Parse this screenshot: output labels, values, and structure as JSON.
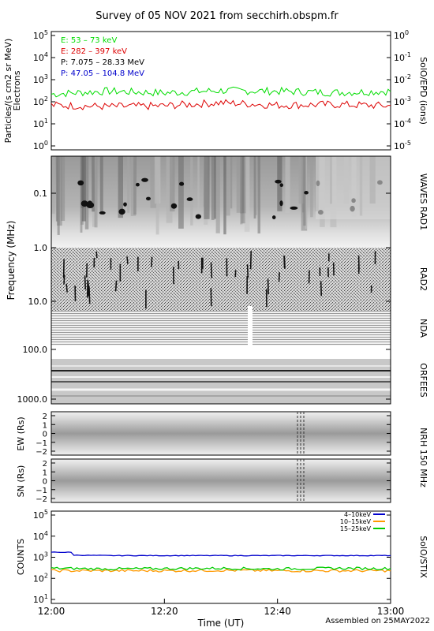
{
  "title": "Survey of 05 NOV 2021 from secchirh.obspm.fr",
  "footer": "Assembled on 25MAY2022",
  "x_axis": {
    "label": "Time (UT)",
    "ticks": [
      "12:00",
      "12:20",
      "12:40",
      "13:00"
    ]
  },
  "panels": {
    "epd": {
      "left_label_1": "Particles/(s cm2 sr MeV)",
      "left_label_2": "Electrons",
      "right_label": "SolO/EPD (ions)",
      "left_ticks": [
        "10^5",
        "10^4",
        "10^3",
        "10^2",
        "10^1",
        "10^0"
      ],
      "right_ticks": [
        "10^0",
        "10^-1",
        "10^-2",
        "10^-3",
        "10^-4",
        "10^-5"
      ],
      "legend": [
        {
          "text": "E: 53 – 73 keV",
          "color": "#00dd00"
        },
        {
          "text": "E: 282 – 397 keV",
          "color": "#dd0000"
        },
        {
          "text": "P: 7.075 – 28.33 MeV",
          "color": "#000000"
        },
        {
          "text": "P: 47.05 – 104.8 MeV",
          "color": "#0000cc"
        }
      ]
    },
    "spectrum": {
      "ylabel": "Frequency (MHz)",
      "yticks": [
        "0.1",
        "1.0",
        "10.0",
        "100.0",
        "1000.0"
      ],
      "instruments": [
        "WAVES RAD1",
        "RAD2",
        "NDA",
        "ORFEES"
      ]
    },
    "nrh": {
      "title": "NRH 150 MHz",
      "ew_label": "EW (Rs)",
      "sn_label": "SN (Rs)",
      "ticks": [
        "2",
        "1",
        "0",
        "−1",
        "−2"
      ]
    },
    "stix": {
      "ylabel": "COUNTS",
      "right_label": "SolO/STIX",
      "yticks": [
        "10^5",
        "10^4",
        "10^3",
        "10^2",
        "10^1"
      ],
      "legend": [
        {
          "text": "4–10keV",
          "color": "#0000cc"
        },
        {
          "text": "10–15keV",
          "color": "#ff9900"
        },
        {
          "text": "15–25keV",
          "color": "#00cc00"
        }
      ]
    }
  },
  "chart_data": [
    {
      "type": "line",
      "title": "",
      "ylabel": "Particles/(s cm2 sr MeV) Electrons",
      "y_scale": "log",
      "ylim": [
        1,
        100000
      ],
      "x": [
        "12:00",
        "12:10",
        "12:20",
        "12:30",
        "12:40",
        "12:50",
        "13:00"
      ],
      "series": [
        {
          "name": "E: 53 – 73 keV",
          "color": "#00dd00",
          "values": [
            220,
            300,
            250,
            320,
            300,
            260,
            300
          ]
        },
        {
          "name": "E: 282 – 397 keV",
          "color": "#dd0000",
          "values": [
            70,
            60,
            65,
            90,
            70,
            75,
            65
          ]
        }
      ]
    },
    {
      "type": "heatmap",
      "ylabel": "Frequency (MHz)",
      "y_scale": "log",
      "ylim": [
        0.02,
        1000
      ],
      "instruments": [
        "WAVES RAD1",
        "RAD2",
        "NDA",
        "ORFEES"
      ]
    },
    {
      "type": "heatmap",
      "title": "NRH 150 MHz",
      "ylabel": "EW (Rs)",
      "ylim": [
        -2,
        2
      ]
    },
    {
      "type": "heatmap",
      "title": "NRH 150 MHz",
      "ylabel": "SN (Rs)",
      "ylim": [
        -2,
        2
      ]
    },
    {
      "type": "line",
      "ylabel": "COUNTS",
      "y_scale": "log",
      "ylim": [
        10,
        100000
      ],
      "x": [
        "12:00",
        "12:10",
        "12:20",
        "12:30",
        "12:40",
        "12:50",
        "13:00"
      ],
      "series": [
        {
          "name": "4–10keV",
          "color": "#0000cc",
          "values": [
            1300,
            1200,
            1200,
            1200,
            1200,
            1200,
            1200
          ]
        },
        {
          "name": "10–15keV",
          "color": "#ff9900",
          "values": [
            230,
            230,
            230,
            240,
            230,
            230,
            230
          ]
        },
        {
          "name": "15–25keV",
          "color": "#00cc00",
          "values": [
            300,
            280,
            290,
            300,
            280,
            300,
            290
          ]
        }
      ]
    }
  ]
}
